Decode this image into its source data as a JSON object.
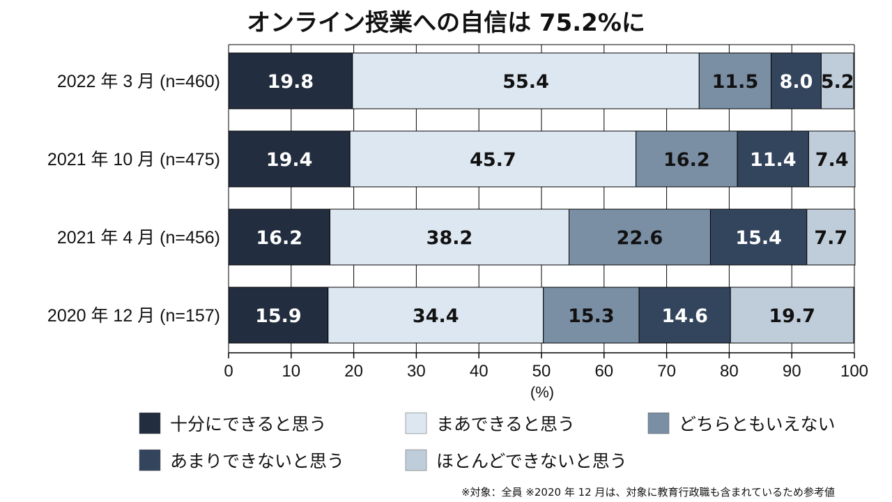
{
  "chart_data": {
    "type": "bar",
    "orientation": "horizontal",
    "stacked": true,
    "title": "オンライン授業への自信は 75.2%に",
    "categories": [
      "2022 年 3 月 (n=460)",
      "2021 年 10 月 (n=475)",
      "2021 年 4 月 (n=456)",
      "2020 年 12 月 (n=157)"
    ],
    "series": [
      {
        "name": "十分にできると思う",
        "values": [
          19.8,
          19.4,
          16.2,
          15.9
        ],
        "value_labels": [
          "19.8",
          "19.4",
          "16.2",
          "15.9"
        ],
        "color": "#222d3f",
        "text_color": "#ffffff"
      },
      {
        "name": "まあできると思う",
        "values": [
          55.4,
          45.7,
          38.2,
          34.4
        ],
        "value_labels": [
          "55.4",
          "45.7",
          "38.2",
          "34.4"
        ],
        "color": "#dde7f1",
        "text_color": "#111111"
      },
      {
        "name": "どちらともいえない",
        "values": [
          11.5,
          16.2,
          22.6,
          15.3
        ],
        "value_labels": [
          "11.5",
          "16.2",
          "22.6",
          "15.3"
        ],
        "color": "#7a8ea4",
        "text_color": "#111111"
      },
      {
        "name": "あまりできないと思う",
        "values": [
          8.0,
          11.4,
          15.4,
          14.6
        ],
        "value_labels": [
          "8.0",
          "11.4",
          "15.4",
          "14.6"
        ],
        "color": "#33445d",
        "text_color": "#ffffff"
      },
      {
        "name": "ほとんどできないと思う",
        "values": [
          5.2,
          7.4,
          7.7,
          19.7
        ],
        "value_labels": [
          "5.2",
          "7.4",
          "7.7",
          "19.7"
        ],
        "color": "#bfccd9",
        "text_color": "#111111"
      }
    ],
    "xlim": [
      0,
      100
    ],
    "xticks": [
      0,
      10,
      20,
      30,
      40,
      50,
      60,
      70,
      80,
      90,
      100
    ],
    "xtick_labels": [
      "0",
      "10",
      "20",
      "30",
      "40",
      "50",
      "60",
      "70",
      "80",
      "90",
      "100"
    ],
    "xlabel": "(%)",
    "grid": true,
    "legend_position": "bottom",
    "note": "※対象：全員 ※2020 年 12 月は、対象に教育行政職も含まれているため参考値"
  }
}
